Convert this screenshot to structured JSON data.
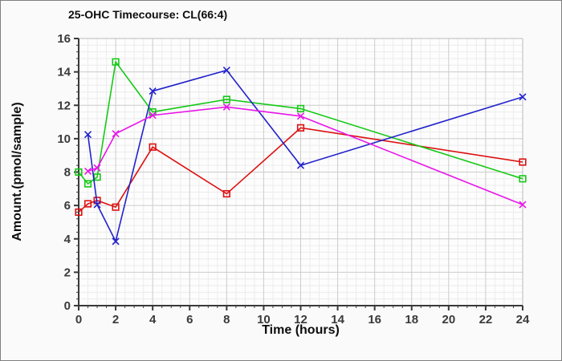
{
  "title": "25-OHC Timecourse: CL(66:4)",
  "chart_data": {
    "type": "line",
    "title": "25-OHC Timecourse: CL(66:4)",
    "xlabel": "Time (hours)",
    "ylabel": "Amount.(pmol/sample)",
    "xlim": [
      0,
      24
    ],
    "ylim": [
      0,
      16
    ],
    "xticks": [
      0,
      2,
      4,
      6,
      8,
      10,
      12,
      14,
      16,
      18,
      20,
      22,
      24
    ],
    "yticks": [
      0,
      2,
      4,
      6,
      8,
      10,
      12,
      14,
      16
    ],
    "x_minor_step": 0.5,
    "y_minor_step": 0.4,
    "grid": true,
    "legend": "none",
    "series": [
      {
        "name": "red-squares",
        "color": "#dd1111",
        "marker": "square",
        "points": [
          [
            0,
            5.6
          ],
          [
            0.5,
            6.1
          ],
          [
            1,
            6.3
          ],
          [
            2,
            5.9
          ],
          [
            4,
            9.5
          ],
          [
            8,
            6.7
          ],
          [
            12,
            10.65
          ],
          [
            24,
            8.6
          ]
        ]
      },
      {
        "name": "green-squares",
        "color": "#16c916",
        "marker": "square",
        "points": [
          [
            0,
            8.0
          ],
          [
            0.5,
            7.3
          ],
          [
            1,
            7.7
          ],
          [
            2,
            14.6
          ],
          [
            4,
            11.6
          ],
          [
            8,
            12.35
          ],
          [
            12,
            11.8
          ],
          [
            24,
            7.6
          ]
        ]
      },
      {
        "name": "blue-x",
        "color": "#2222cc",
        "marker": "x",
        "points": [
          [
            0.5,
            10.25
          ],
          [
            1,
            6.05
          ],
          [
            2,
            3.85
          ],
          [
            4,
            12.85
          ],
          [
            8,
            14.1
          ],
          [
            12,
            8.4
          ],
          [
            24,
            12.5
          ]
        ]
      },
      {
        "name": "magenta-x",
        "color": "#e816e8",
        "marker": "x",
        "points": [
          [
            0.5,
            8.05
          ],
          [
            1,
            8.25
          ],
          [
            2,
            10.3
          ],
          [
            4,
            11.4
          ],
          [
            8,
            11.9
          ],
          [
            12,
            11.35
          ],
          [
            24,
            6.05
          ]
        ]
      }
    ]
  },
  "colors": {
    "plot_background": "#fdfdfd",
    "page_background": "#fafafa",
    "minor_grid": "#ececec",
    "major_grid": "#cccccc",
    "plot_border": "#bbbbbb",
    "axis": "#3a3a3a",
    "tick_label": "#3a3a3a",
    "title_text": "#0d0d0d"
  }
}
